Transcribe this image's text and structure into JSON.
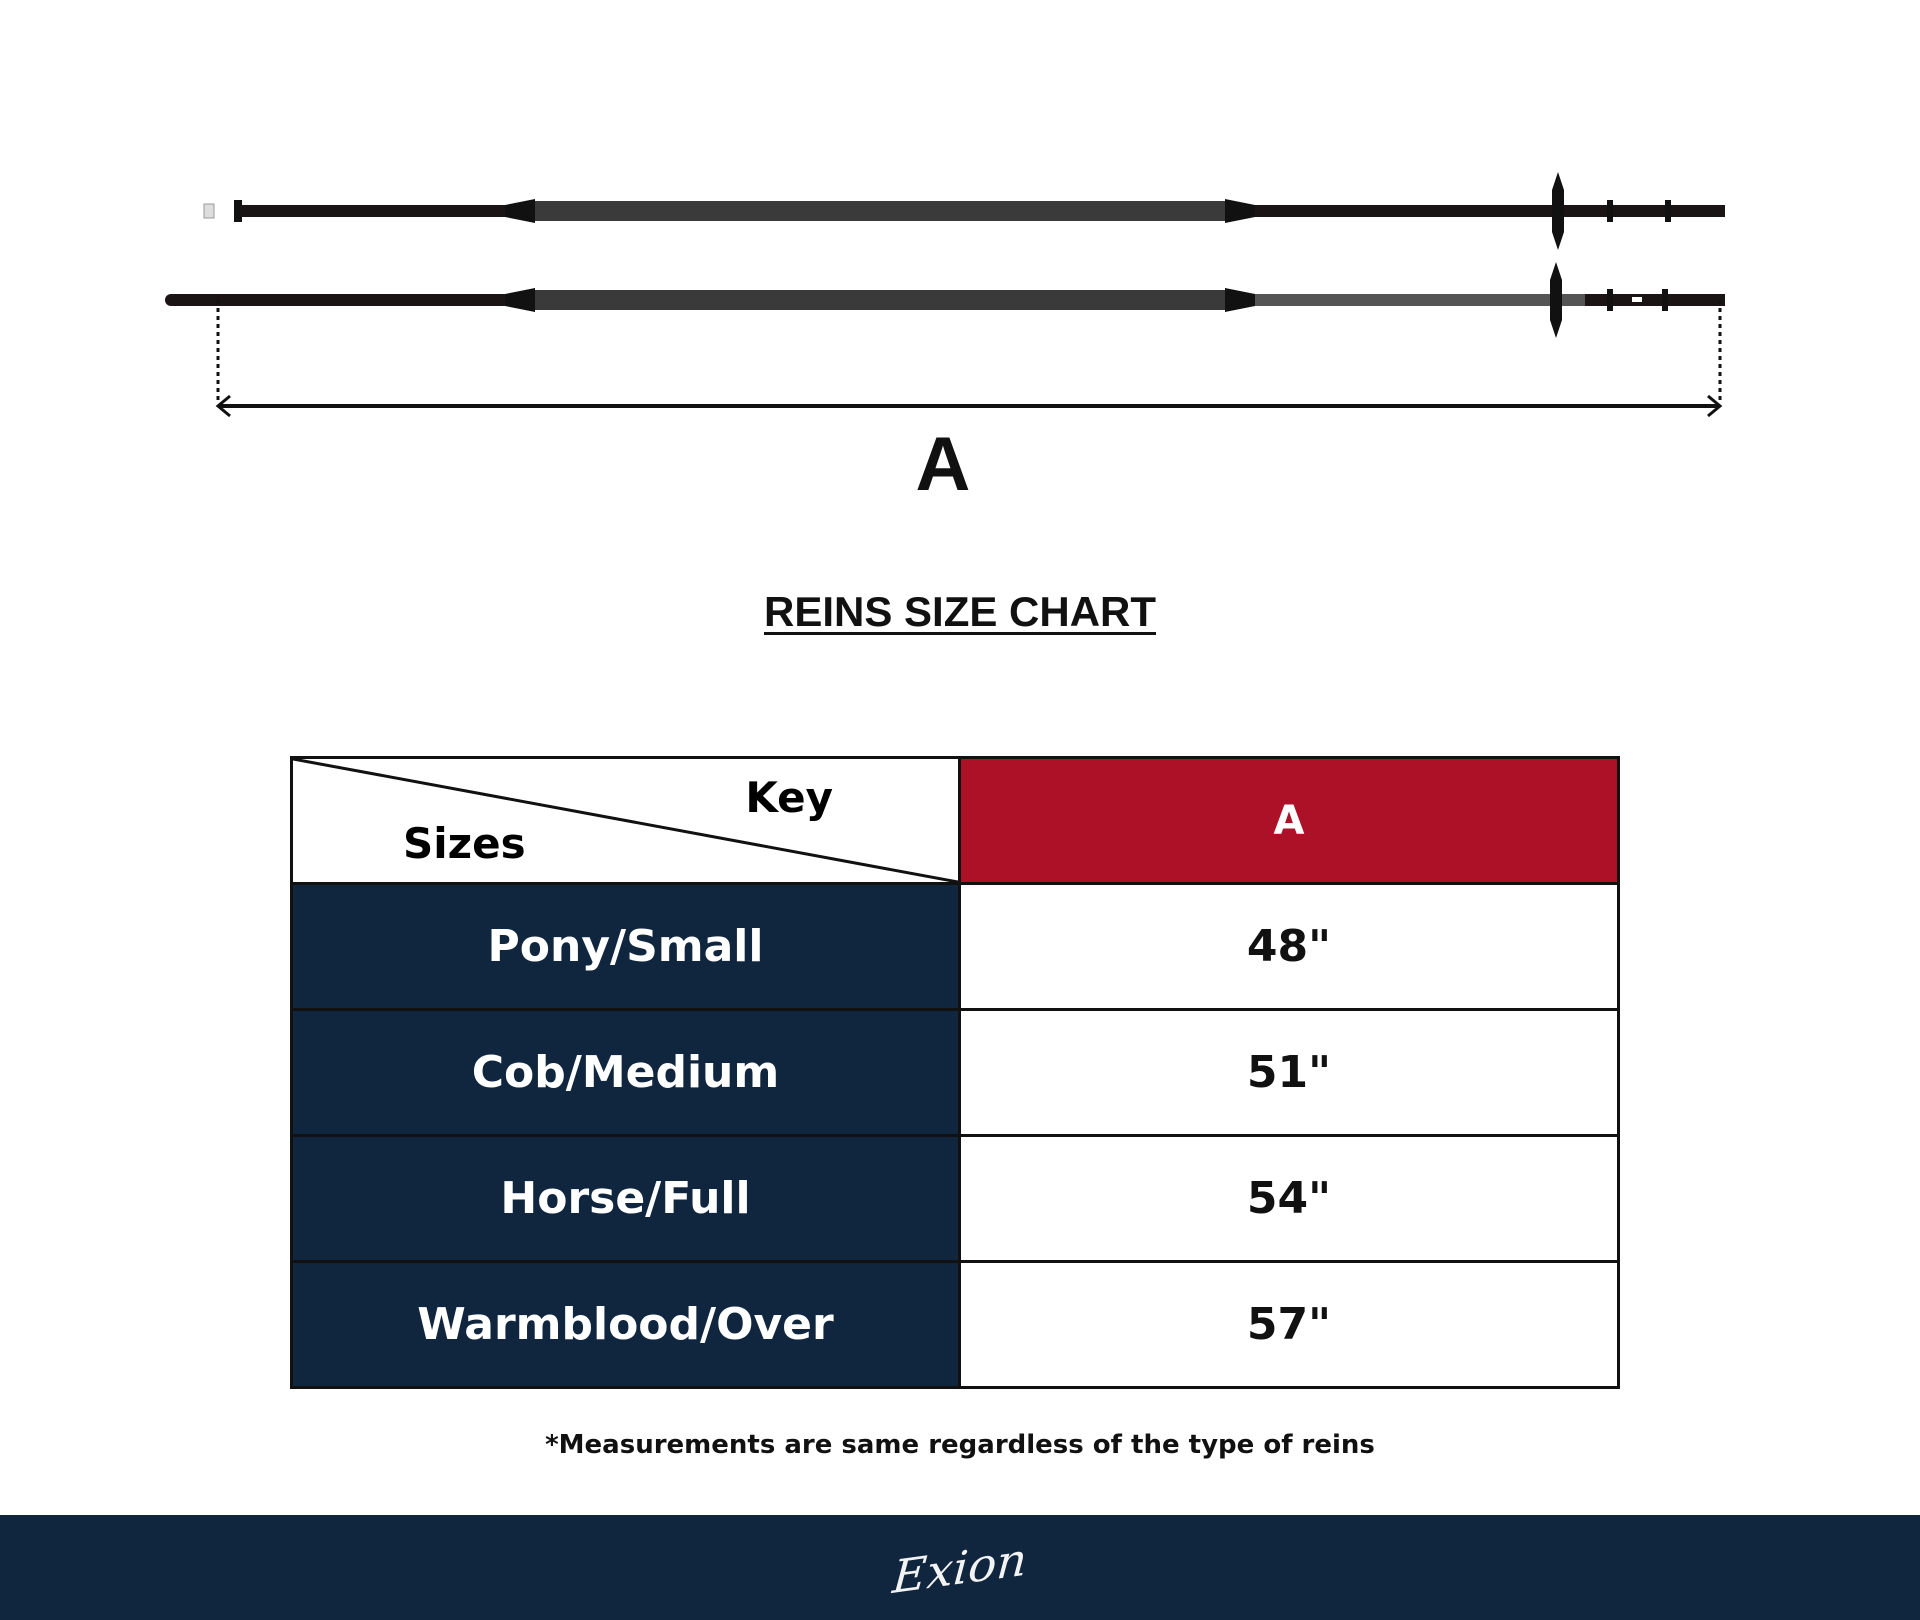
{
  "diagram": {
    "dimension_label": "A"
  },
  "title": "REINS SIZE CHART",
  "table": {
    "key_label": "Key",
    "sizes_label": "Sizes",
    "column_header": "A",
    "rows": [
      {
        "size": "Pony/Small",
        "a": "48\""
      },
      {
        "size": "Cob/Medium",
        "a": "51\""
      },
      {
        "size": "Horse/Full",
        "a": "54\""
      },
      {
        "size": "Warmblood/Over",
        "a": "57\""
      }
    ]
  },
  "note": "*Measurements are same regardless of the type of reins",
  "footer": {
    "logo": "Exion"
  },
  "colors": {
    "navy": "#10263f",
    "red": "#ad1128"
  }
}
